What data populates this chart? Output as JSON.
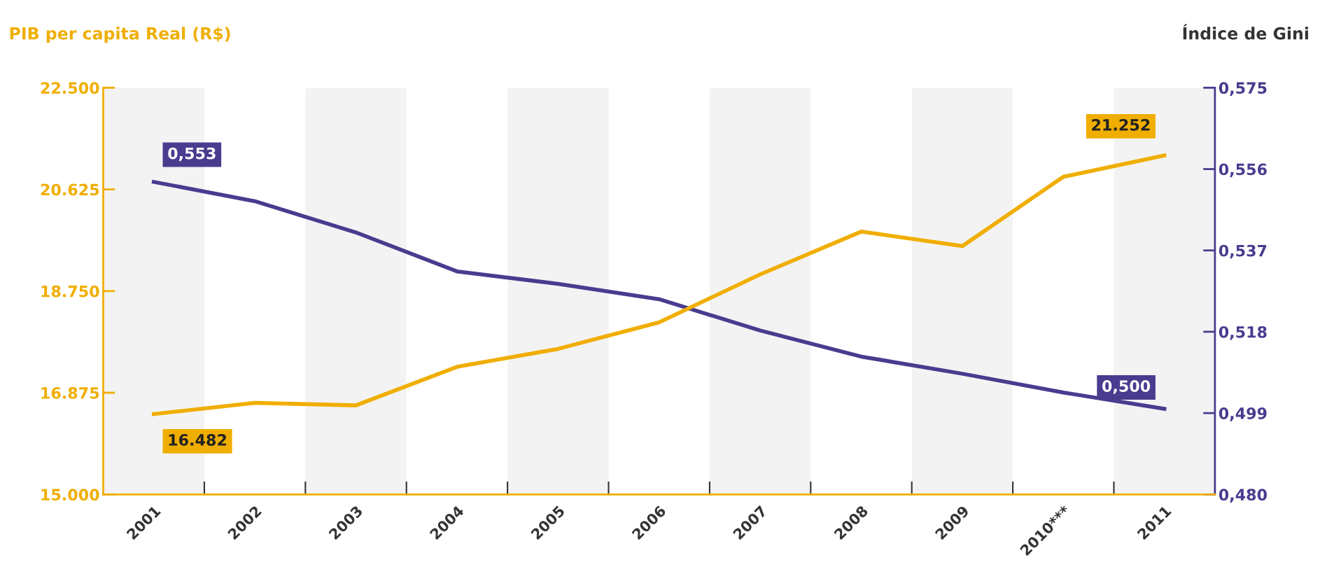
{
  "chart_data": {
    "type": "line",
    "ylabel": "PIB per capita Real (R$)",
    "y2label": "Índice de Gini",
    "categories": [
      "2001",
      "2002",
      "2003",
      "2004",
      "2005",
      "2006",
      "2007",
      "2008",
      "2009",
      "2010***",
      "2011"
    ],
    "series": [
      {
        "color": "#f0ae00",
        "values": [
          16482,
          16690,
          16642,
          17353,
          17684,
          18174,
          19058,
          19847,
          19579,
          20858,
          21252
        ],
        "value_labels": [
          "16.482",
          null,
          null,
          null,
          null,
          null,
          null,
          null,
          null,
          null,
          "21.252"
        ]
      },
      {
        "color": "#4a3b8f",
        "axis": "y2",
        "values": [
          0.553,
          0.5485,
          0.5412,
          0.5321,
          0.5292,
          0.5256,
          0.5183,
          0.5122,
          0.5082,
          0.5038,
          0.5
        ],
        "value_labels": [
          "0,553",
          null,
          null,
          null,
          null,
          null,
          null,
          null,
          null,
          null,
          "0,500"
        ]
      }
    ],
    "ylim": [
      15000,
      22500
    ],
    "yticks": [
      {
        "value": 15000,
        "label": "15.000"
      },
      {
        "value": 16875,
        "label": "16.875"
      },
      {
        "value": 18750,
        "label": "18.750"
      },
      {
        "value": 20625,
        "label": "20.625"
      },
      {
        "value": 22500,
        "label": "22.500"
      }
    ],
    "y2lim": [
      0.48,
      0.575
    ],
    "y2ticks": [
      {
        "value": 0.48,
        "label": "0,480"
      },
      {
        "value": 0.499,
        "label": "0,499"
      },
      {
        "value": 0.518,
        "label": "0,518"
      },
      {
        "value": 0.537,
        "label": "0,537"
      },
      {
        "value": 0.556,
        "label": "0,556"
      },
      {
        "value": 0.575,
        "label": "0,575"
      }
    ],
    "bands": [
      {
        "axis": "x",
        "from": "2001",
        "to": "2001",
        "color": "#f3f3f3"
      },
      {
        "axis": "x",
        "from": "2003",
        "to": "2003",
        "color": "#f3f3f3"
      },
      {
        "axis": "x",
        "from": "2005",
        "to": "2005",
        "color": "#f3f3f3"
      },
      {
        "axis": "x",
        "from": "2007",
        "to": "2007",
        "color": "#f3f3f3"
      },
      {
        "axis": "x",
        "from": "2009",
        "to": "2009",
        "color": "#f3f3f3"
      },
      {
        "axis": "x",
        "from": "2011",
        "to": "2011",
        "color": "#f3f3f3"
      }
    ],
    "grid": false,
    "marker": "none",
    "line_style": "solid"
  }
}
